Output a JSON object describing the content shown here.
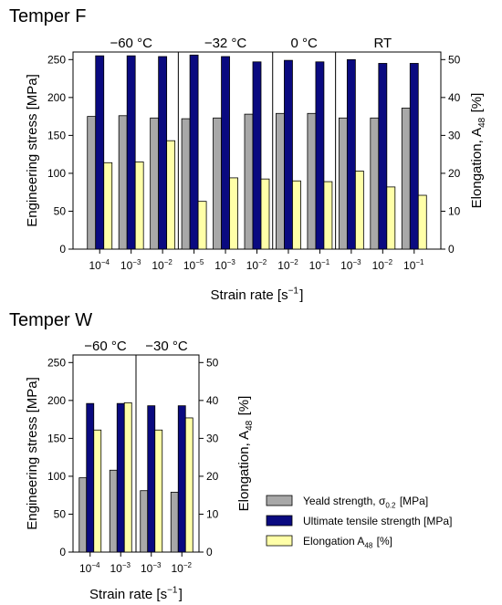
{
  "chart_data": [
    {
      "type": "bar",
      "title": "Temper F",
      "xlabel": "Strain rate [s⁻¹]",
      "ylabel": "Engineering stress [MPa]",
      "y2label": "Elongation, A₄₈ [%]",
      "ylim": [
        0,
        260
      ],
      "y2lim": [
        0,
        52
      ],
      "yticks": [
        0,
        50,
        100,
        150,
        200,
        250
      ],
      "y2ticks": [
        0,
        10,
        20,
        30,
        40,
        50
      ],
      "groups": [
        {
          "label": "−60 °C",
          "categories": [
            "10⁻⁴",
            "10⁻³",
            "10⁻²"
          ]
        },
        {
          "label": "−32 °C",
          "categories": [
            "10⁻⁵",
            "10⁻³",
            "10⁻²"
          ]
        },
        {
          "label": "0 °C",
          "categories": [
            "10⁻²",
            "10⁻¹"
          ]
        },
        {
          "label": "RT",
          "categories": [
            "10⁻³",
            "10⁻²",
            "10⁻¹"
          ]
        }
      ],
      "series": [
        {
          "name": "Yeald strength, σ₀.₂ [MPa]",
          "axis": "left",
          "color": "#a8a8a8",
          "values": [
            175,
            176,
            173,
            172,
            173,
            178,
            179,
            179,
            173,
            173,
            186
          ]
        },
        {
          "name": "Ultimate tensile strength [MPa]",
          "axis": "left",
          "color": "#0a0a80",
          "values": [
            255,
            255,
            254,
            256,
            254,
            247,
            249,
            247,
            250,
            245,
            245
          ]
        },
        {
          "name": "Elongation A₄₈ [%]",
          "axis": "right",
          "color": "#ffffa8",
          "values": [
            22.8,
            23.0,
            28.6,
            12.6,
            18.8,
            18.5,
            18.0,
            17.8,
            20.6,
            16.4,
            14.2
          ]
        }
      ],
      "legend": "none",
      "grid": false
    },
    {
      "type": "bar",
      "title": "Temper W",
      "xlabel": "Strain rate [s⁻¹]",
      "ylabel": "Engineering stress [MPa]",
      "y2label": "Elongation, A₄₈ [%]",
      "ylim": [
        0,
        260
      ],
      "y2lim": [
        0,
        52
      ],
      "yticks": [
        0,
        50,
        100,
        150,
        200,
        250
      ],
      "y2ticks": [
        0,
        10,
        20,
        30,
        40,
        50
      ],
      "groups": [
        {
          "label": "−60 °C",
          "categories": [
            "10⁻⁴",
            "10⁻³"
          ]
        },
        {
          "label": "−30 °C",
          "categories": [
            "10⁻³",
            "10⁻²"
          ]
        }
      ],
      "series": [
        {
          "name": "Yeald strength, σ₀.₂ [MPa]",
          "axis": "left",
          "color": "#a8a8a8",
          "values": [
            98,
            108,
            81,
            79
          ]
        },
        {
          "name": "Ultimate tensile strength [MPa]",
          "axis": "left",
          "color": "#0a0a80",
          "values": [
            196,
            196,
            193,
            193
          ]
        },
        {
          "name": "Elongation A₄₈ [%]",
          "axis": "right",
          "color": "#ffffa8",
          "values": [
            32.2,
            39.4,
            32.2,
            35.4
          ]
        }
      ],
      "legend": "bottom-right",
      "grid": false
    }
  ]
}
